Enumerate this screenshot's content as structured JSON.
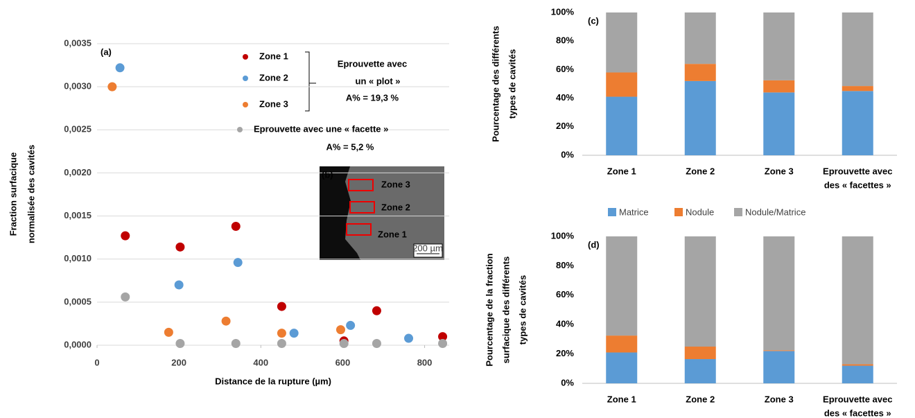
{
  "chart_data": [
    {
      "type": "scatter",
      "panel": "(a)",
      "y_label": [
        "Fraction surfacique",
        "normalisée des cavités"
      ],
      "x_label": "Distance de la rupture (µm)",
      "xlim": [
        0,
        860
      ],
      "xticks": [
        0,
        200,
        400,
        600,
        800
      ],
      "ylim": [
        0,
        0.0035
      ],
      "yticks": [
        {
          "value": 0,
          "label": "0,0000"
        },
        {
          "value": 0.0005,
          "label": "0,0005"
        },
        {
          "value": 0.001,
          "label": "0,0010"
        },
        {
          "value": 0.0015,
          "label": "0,0015"
        },
        {
          "value": 0.002,
          "label": "0,0020"
        },
        {
          "value": 0.0025,
          "label": "0,0025"
        },
        {
          "value": 0.003,
          "label": "0,0030"
        },
        {
          "value": 0.0035,
          "label": "0,0035"
        }
      ],
      "grid": true,
      "series": [
        {
          "name": "Zone 1",
          "color": "#c00000",
          "x": [
            69,
            203,
            339,
            451,
            603,
            683,
            844
          ],
          "y": [
            0.00127,
            0.00114,
            0.00138,
            0.00045,
            5e-05,
            0.0004,
            0.0001
          ]
        },
        {
          "name": "Zone 2",
          "color": "#5b9bd5",
          "x": [
            56,
            200,
            344,
            481,
            619,
            761
          ],
          "y": [
            0.00322,
            0.0007,
            0.00096,
            0.00014,
            0.00023,
            8e-05
          ]
        },
        {
          "name": "Zone 3",
          "color": "#ed7d31",
          "x": [
            37,
            175,
            315,
            451,
            595
          ],
          "y": [
            0.003,
            0.00015,
            0.00028,
            0.00014,
            0.00018
          ]
        },
        {
          "name": "Eprouvette avec une « facette »",
          "color": "#a5a5a5",
          "x": [
            69,
            203,
            339,
            451,
            603,
            683,
            844
          ],
          "y": [
            0.00056,
            2e-05,
            2e-05,
            2e-05,
            2e-05,
            2e-05,
            2e-05
          ]
        }
      ],
      "annotations": [
        "Eprouvette avec",
        "un « plot »",
        "A% = 19,3 %",
        "A% = 5,2 %"
      ],
      "inset": {
        "label": "(b)",
        "zones": [
          "Zone 3",
          "Zone 2",
          "Zone 1"
        ],
        "scale": "200 µm"
      }
    },
    {
      "type": "bar",
      "stacked": true,
      "panel": "(c)",
      "y_label": [
        "Pourcentage des différents",
        "types de cavités"
      ],
      "categories": [
        [
          "Zone 1"
        ],
        [
          "Zone 2"
        ],
        [
          "Zone 3"
        ],
        [
          "Eprouvette avec",
          "des « facettes »"
        ]
      ],
      "ylim": [
        0,
        100
      ],
      "yticks": [
        {
          "value": 0,
          "label": "0%"
        },
        {
          "value": 20,
          "label": "20%"
        },
        {
          "value": 40,
          "label": "40%"
        },
        {
          "value": 60,
          "label": "60%"
        },
        {
          "value": 80,
          "label": "80%"
        },
        {
          "value": 100,
          "label": "100%"
        }
      ],
      "series": [
        {
          "name": "Matrice",
          "color": "#5b9bd5",
          "values": [
            41,
            52,
            44,
            45
          ]
        },
        {
          "name": "Nodule",
          "color": "#ed7d31",
          "values": [
            17,
            12,
            8.5,
            3.5
          ]
        },
        {
          "name": "Nodule/Matrice",
          "color": "#a5a5a5",
          "values": [
            42,
            36,
            47.5,
            51.5
          ]
        }
      ]
    },
    {
      "type": "bar",
      "stacked": true,
      "panel": "(d)",
      "y_label": [
        "Pourcentage de la fraction",
        "surfacique  des différents",
        "types de cavités"
      ],
      "categories": [
        [
          "Zone 1"
        ],
        [
          "Zone 2"
        ],
        [
          "Zone 3"
        ],
        [
          "Eprouvette avec",
          "des « facettes »"
        ]
      ],
      "ylim": [
        0,
        100
      ],
      "yticks": [
        {
          "value": 0,
          "label": "0%"
        },
        {
          "value": 20,
          "label": "20%"
        },
        {
          "value": 40,
          "label": "40%"
        },
        {
          "value": 60,
          "label": "60%"
        },
        {
          "value": 80,
          "label": "80%"
        },
        {
          "value": 100,
          "label": "100%"
        }
      ],
      "series": [
        {
          "color": "#5b9bd5",
          "values": [
            21,
            16.5,
            22,
            12
          ]
        },
        {
          "color": "#ed7d31",
          "values": [
            11.5,
            8.5,
            0.5,
            1
          ]
        },
        {
          "color": "#a5a5a5",
          "values": [
            67.5,
            75,
            77.5,
            87
          ]
        }
      ]
    }
  ]
}
